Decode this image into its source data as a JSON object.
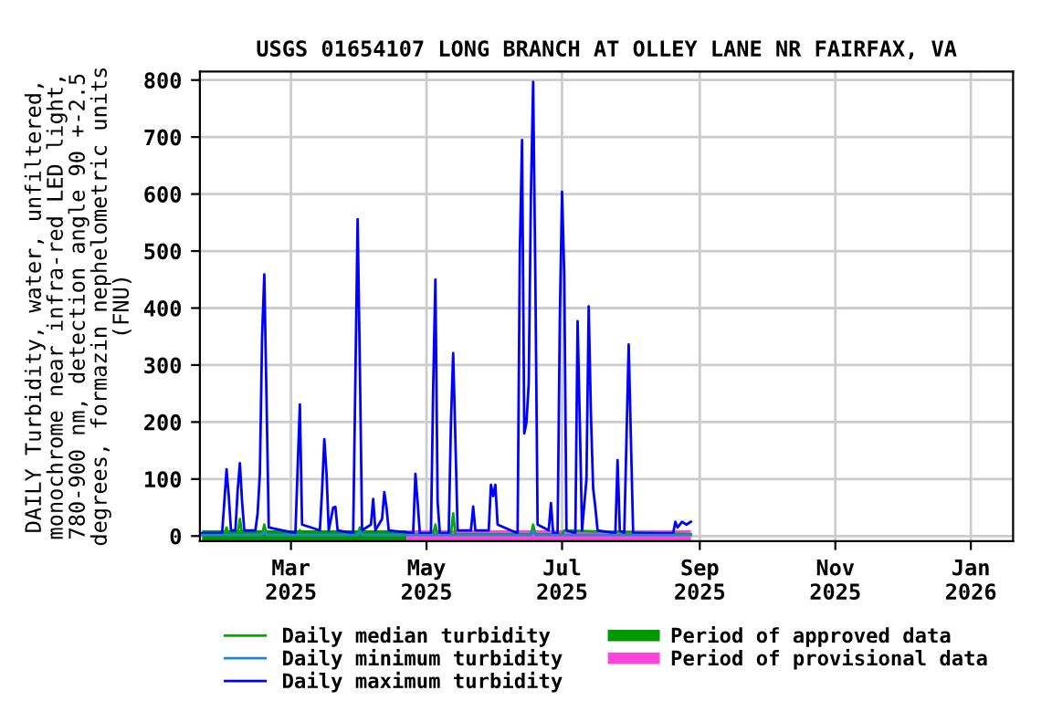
{
  "chart_data": {
    "type": "line",
    "title": "USGS 01654107 LONG BRANCH AT OLLEY LANE NR FAIRFAX, VA",
    "ylabel": "DAILY Turbidity, water, unfiltered,\nmonochrome near infra-red LED light,\n780-900 nm, detection angle 90 +-2.5\ndegrees, formazin nephelometric units\n(FNU)",
    "series": [
      {
        "name": "Daily median turbidity",
        "color": "#00aa00",
        "x": [
          "2025-01-20",
          "2025-01-30",
          "2025-01-31",
          "2025-02-01",
          "2025-02-05",
          "2025-02-06",
          "2025-02-07",
          "2025-02-16",
          "2025-02-17",
          "2025-02-18",
          "2025-03-04",
          "2025-03-05",
          "2025-03-06",
          "2025-03-31",
          "2025-04-01",
          "2025-04-02",
          "2025-05-04",
          "2025-05-05",
          "2025-05-06",
          "2025-05-12",
          "2025-05-13",
          "2025-05-14",
          "2025-06-17",
          "2025-06-18",
          "2025-06-19",
          "2025-07-01",
          "2025-07-02",
          "2025-08-28"
        ],
        "values": [
          3,
          3,
          15,
          3,
          3,
          30,
          3,
          3,
          20,
          3,
          3,
          10,
          3,
          3,
          15,
          3,
          3,
          20,
          3,
          3,
          40,
          3,
          3,
          20,
          3,
          3,
          10,
          3
        ]
      },
      {
        "name": "Daily minimum turbidity",
        "color": "#1f88cc",
        "x": [
          "2025-01-20",
          "2025-02-16",
          "2025-02-17",
          "2025-02-18",
          "2025-03-31",
          "2025-04-01",
          "2025-04-02",
          "2025-06-17",
          "2025-06-18",
          "2025-06-19",
          "2025-08-28"
        ],
        "values": [
          2,
          2,
          8,
          2,
          2,
          8,
          2,
          2,
          10,
          2,
          2
        ]
      },
      {
        "name": "Daily maximum turbidity",
        "color": "#0000ff",
        "x": [
          "2025-01-20",
          "2025-01-29",
          "2025-01-30",
          "2025-01-31",
          "2025-02-01",
          "2025-02-02",
          "2025-02-04",
          "2025-02-05",
          "2025-02-06",
          "2025-02-07",
          "2025-02-08",
          "2025-02-13",
          "2025-02-14",
          "2025-02-15",
          "2025-02-16",
          "2025-02-17",
          "2025-02-18",
          "2025-02-19",
          "2025-03-03",
          "2025-03-04",
          "2025-03-05",
          "2025-03-06",
          "2025-03-14",
          "2025-03-15",
          "2025-03-16",
          "2025-03-17",
          "2025-03-18",
          "2025-03-20",
          "2025-03-21",
          "2025-03-22",
          "2025-03-29",
          "2025-03-30",
          "2025-03-31",
          "2025-04-01",
          "2025-04-02",
          "2025-04-06",
          "2025-04-07",
          "2025-04-08",
          "2025-04-11",
          "2025-04-12",
          "2025-04-13",
          "2025-04-14",
          "2025-04-25",
          "2025-04-26",
          "2025-04-27",
          "2025-04-28",
          "2025-05-03",
          "2025-05-04",
          "2025-05-05",
          "2025-05-06",
          "2025-05-07",
          "2025-05-11",
          "2025-05-12",
          "2025-05-13",
          "2025-05-14",
          "2025-05-15",
          "2025-05-21",
          "2025-05-22",
          "2025-05-23",
          "2025-05-29",
          "2025-05-30",
          "2025-05-31",
          "2025-06-01",
          "2025-06-02",
          "2025-06-11",
          "2025-06-12",
          "2025-06-13",
          "2025-06-14",
          "2025-06-15",
          "2025-06-16",
          "2025-06-17",
          "2025-06-18",
          "2025-06-19",
          "2025-06-20",
          "2025-06-25",
          "2025-06-26",
          "2025-06-27",
          "2025-06-29",
          "2025-06-30",
          "2025-07-01",
          "2025-07-02",
          "2025-07-03",
          "2025-07-07",
          "2025-07-08",
          "2025-07-09",
          "2025-07-10",
          "2025-07-12",
          "2025-07-13",
          "2025-07-14",
          "2025-07-15",
          "2025-07-16",
          "2025-07-17",
          "2025-07-25",
          "2025-07-26",
          "2025-07-27",
          "2025-07-29",
          "2025-07-30",
          "2025-07-31",
          "2025-08-01",
          "2025-08-02",
          "2025-08-20",
          "2025-08-21",
          "2025-08-22",
          "2025-08-24",
          "2025-08-26",
          "2025-08-28"
        ],
        "values": [
          5,
          5,
          60,
          117,
          70,
          10,
          10,
          80,
          128,
          60,
          10,
          10,
          40,
          110,
          350,
          459,
          240,
          15,
          5,
          120,
          231,
          20,
          10,
          80,
          170,
          110,
          10,
          50,
          51,
          10,
          5,
          280,
          556,
          300,
          10,
          20,
          65,
          10,
          30,
          77,
          50,
          10,
          5,
          109,
          60,
          5,
          5,
          260,
          450,
          60,
          5,
          5,
          200,
          321,
          170,
          10,
          10,
          52,
          10,
          10,
          90,
          70,
          90,
          20,
          5,
          500,
          695,
          180,
          200,
          267,
          600,
          797,
          450,
          20,
          10,
          58,
          5,
          5,
          380,
          604,
          459,
          10,
          5,
          377,
          200,
          10,
          100,
          403,
          213,
          84,
          50,
          10,
          5,
          133,
          10,
          5,
          170,
          336,
          170,
          5,
          5,
          25,
          15,
          25,
          20,
          25
        ]
      },
      {
        "name": "Period of approved data",
        "color": "#009900",
        "x": [
          "2025-01-20",
          "2025-04-22"
        ],
        "values": [
          0,
          0
        ]
      },
      {
        "name": "Period of provisional data",
        "color": "#ff44dd",
        "x": [
          "2025-04-22",
          "2025-08-28"
        ],
        "values": [
          0,
          0
        ]
      }
    ],
    "xlim": [
      "2025-01-19",
      "2026-01-20"
    ],
    "xticks": [
      {
        "value": "2025-03-01",
        "label": "Mar\n2025"
      },
      {
        "value": "2025-05-01",
        "label": "May\n2025"
      },
      {
        "value": "2025-07-01",
        "label": "Jul\n2025"
      },
      {
        "value": "2025-09-01",
        "label": "Sep\n2025"
      },
      {
        "value": "2025-11-01",
        "label": "Nov\n2025"
      },
      {
        "value": "2026-01-01",
        "label": "Jan\n2026"
      }
    ],
    "ylim": [
      -9,
      815
    ],
    "yticks": [
      0,
      100,
      200,
      300,
      400,
      500,
      600,
      700,
      800
    ],
    "grid": true,
    "legend": "bottom",
    "line_style": "solid",
    "marker": "none"
  }
}
